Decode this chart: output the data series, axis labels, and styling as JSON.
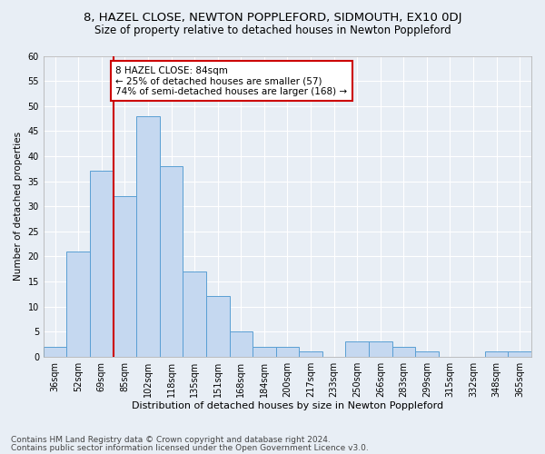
{
  "title1": "8, HAZEL CLOSE, NEWTON POPPLEFORD, SIDMOUTH, EX10 0DJ",
  "title2": "Size of property relative to detached houses in Newton Poppleford",
  "xlabel": "Distribution of detached houses by size in Newton Poppleford",
  "ylabel": "Number of detached properties",
  "footer1": "Contains HM Land Registry data © Crown copyright and database right 2024.",
  "footer2": "Contains public sector information licensed under the Open Government Licence v3.0.",
  "bin_labels": [
    "36sqm",
    "52sqm",
    "69sqm",
    "85sqm",
    "102sqm",
    "118sqm",
    "135sqm",
    "151sqm",
    "168sqm",
    "184sqm",
    "200sqm",
    "217sqm",
    "233sqm",
    "250sqm",
    "266sqm",
    "283sqm",
    "299sqm",
    "315sqm",
    "332sqm",
    "348sqm",
    "365sqm"
  ],
  "bar_values": [
    2,
    21,
    37,
    32,
    48,
    38,
    17,
    12,
    5,
    2,
    2,
    1,
    0,
    3,
    3,
    2,
    1,
    0,
    0,
    1,
    1
  ],
  "bar_color": "#c5d8f0",
  "bar_edge_color": "#5a9fd4",
  "vline_color": "#cc0000",
  "annotation_text": "8 HAZEL CLOSE: 84sqm\n← 25% of detached houses are smaller (57)\n74% of semi-detached houses are larger (168) →",
  "annotation_box_color": "#ffffff",
  "annotation_box_edge_color": "#cc0000",
  "ylim": [
    0,
    60
  ],
  "yticks": [
    0,
    5,
    10,
    15,
    20,
    25,
    30,
    35,
    40,
    45,
    50,
    55,
    60
  ],
  "bg_color": "#e8eef5",
  "plot_bg_color": "#e8eef5",
  "grid_color": "#ffffff",
  "title1_fontsize": 9.5,
  "title2_fontsize": 8.5,
  "xlabel_fontsize": 8,
  "ylabel_fontsize": 7.5,
  "tick_fontsize": 7,
  "annotation_fontsize": 7.5,
  "footer_fontsize": 6.5
}
